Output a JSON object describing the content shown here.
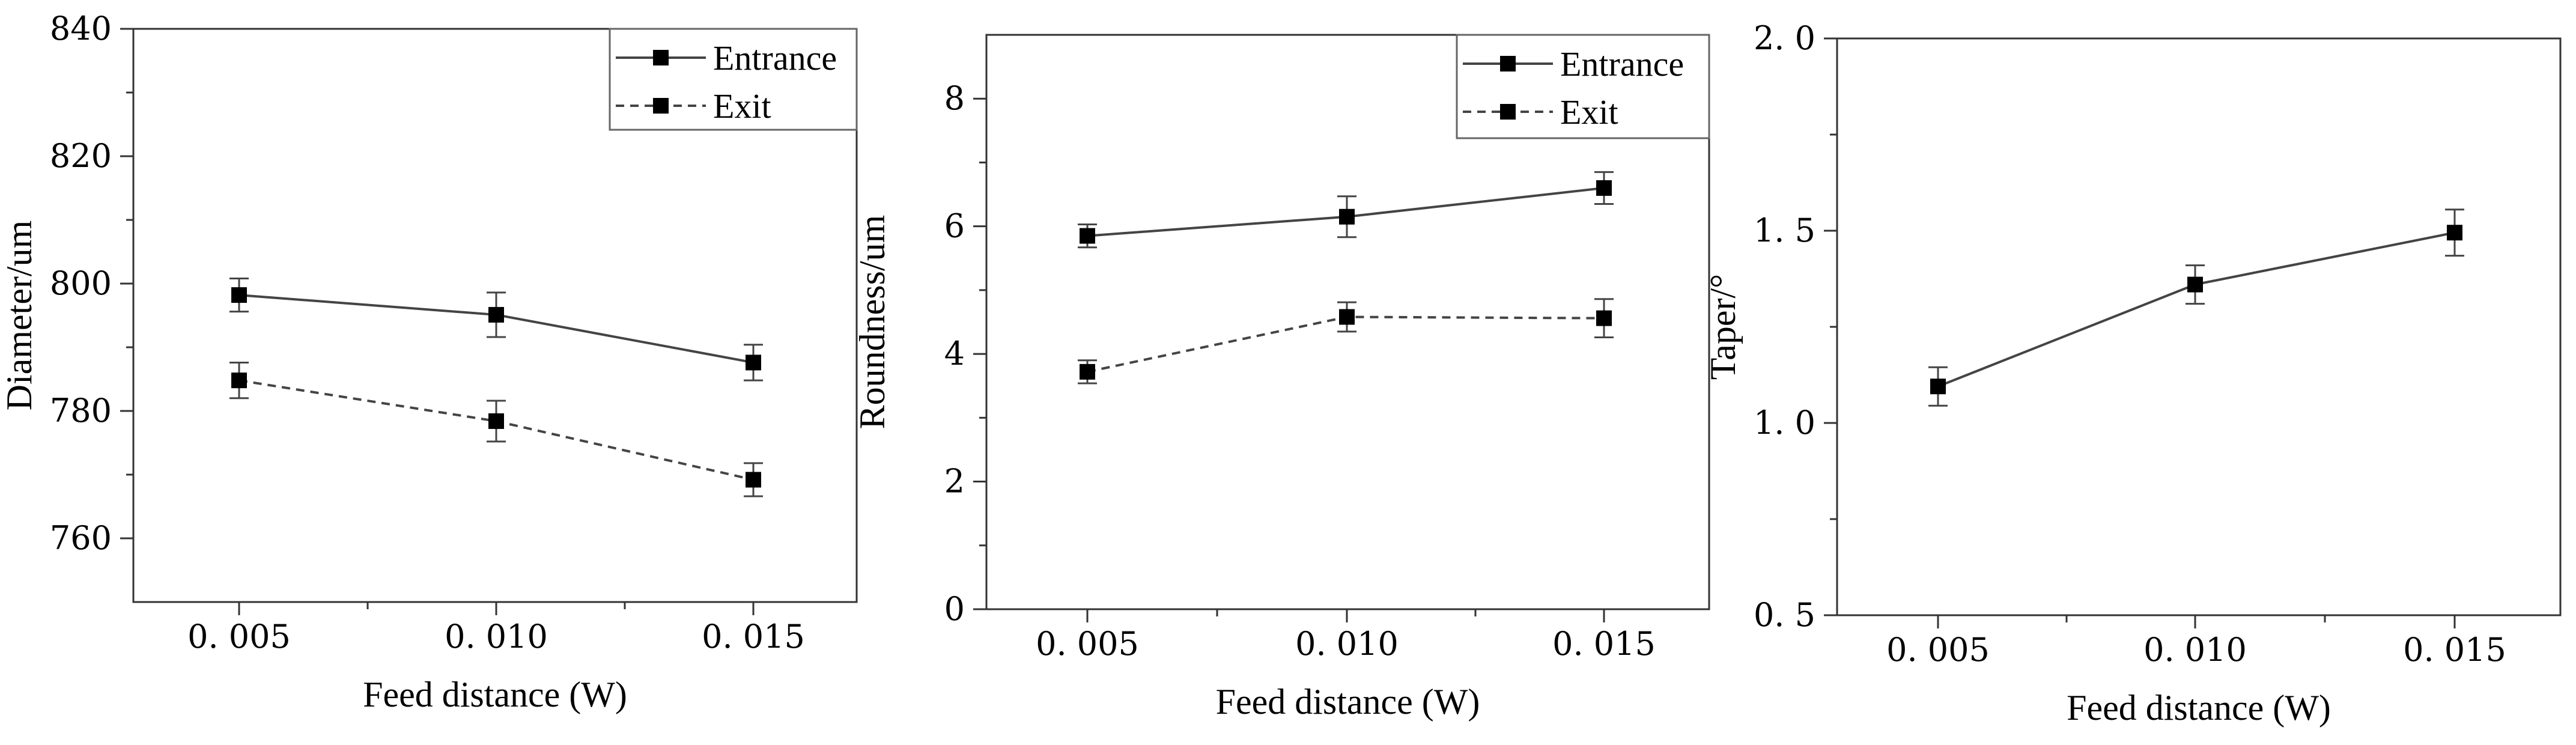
{
  "chart_data": [
    {
      "type": "line",
      "categories": [
        "0.005",
        "0.010",
        "0.015"
      ],
      "tick_labels_x": [
        "0. 005",
        "0. 010",
        "0. 015"
      ],
      "tick_labels_y": [
        "760",
        "780",
        "800",
        "820",
        "840"
      ],
      "ylim": [
        750,
        840
      ],
      "y_ticks": [
        760,
        780,
        800,
        820,
        840
      ],
      "xlabel": "Feed distance (W)",
      "ylabel": "Diameter/um",
      "legend_position": "top-right",
      "series": [
        {
          "name": "Entrance",
          "style": "solid",
          "values": [
            798.2,
            795.1,
            787.6
          ],
          "errors": [
            2.6,
            3.5,
            2.8
          ]
        },
        {
          "name": "Exit",
          "style": "dashed",
          "values": [
            784.8,
            778.4,
            769.2
          ],
          "errors": [
            2.8,
            3.2,
            2.6
          ]
        }
      ]
    },
    {
      "type": "line",
      "categories": [
        "0.005",
        "0.010",
        "0.015"
      ],
      "tick_labels_x": [
        "0. 005",
        "0. 010",
        "0. 015"
      ],
      "tick_labels_y": [
        "0",
        "2",
        "4",
        "6",
        "8"
      ],
      "ylim": [
        0,
        9
      ],
      "y_ticks": [
        0,
        2,
        4,
        6,
        8
      ],
      "xlabel": "Feed distance (W)",
      "ylabel": "Roundness/um",
      "legend_position": "top-right",
      "series": [
        {
          "name": "Entrance",
          "style": "solid",
          "values": [
            5.85,
            6.15,
            6.6
          ],
          "errors": [
            0.18,
            0.32,
            0.25
          ]
        },
        {
          "name": "Exit",
          "style": "dashed",
          "values": [
            3.72,
            4.58,
            4.56
          ],
          "errors": [
            0.18,
            0.23,
            0.3
          ]
        }
      ]
    },
    {
      "type": "line",
      "categories": [
        "0.005",
        "0.010",
        "0.015"
      ],
      "tick_labels_x": [
        "0. 005",
        "0. 010",
        "0. 015"
      ],
      "tick_labels_y": [
        "0. 5",
        "1. 0",
        "1. 5",
        "2. 0"
      ],
      "ylim": [
        0.5,
        2.0
      ],
      "y_ticks": [
        0.5,
        1.0,
        1.5,
        2.0
      ],
      "xlabel": "Feed distance (W)",
      "ylabel": "Taper/°",
      "legend_position": "none",
      "series": [
        {
          "name": "Taper",
          "style": "solid",
          "values": [
            1.095,
            1.36,
            1.495
          ],
          "errors": [
            0.05,
            0.05,
            0.06
          ]
        }
      ]
    }
  ]
}
